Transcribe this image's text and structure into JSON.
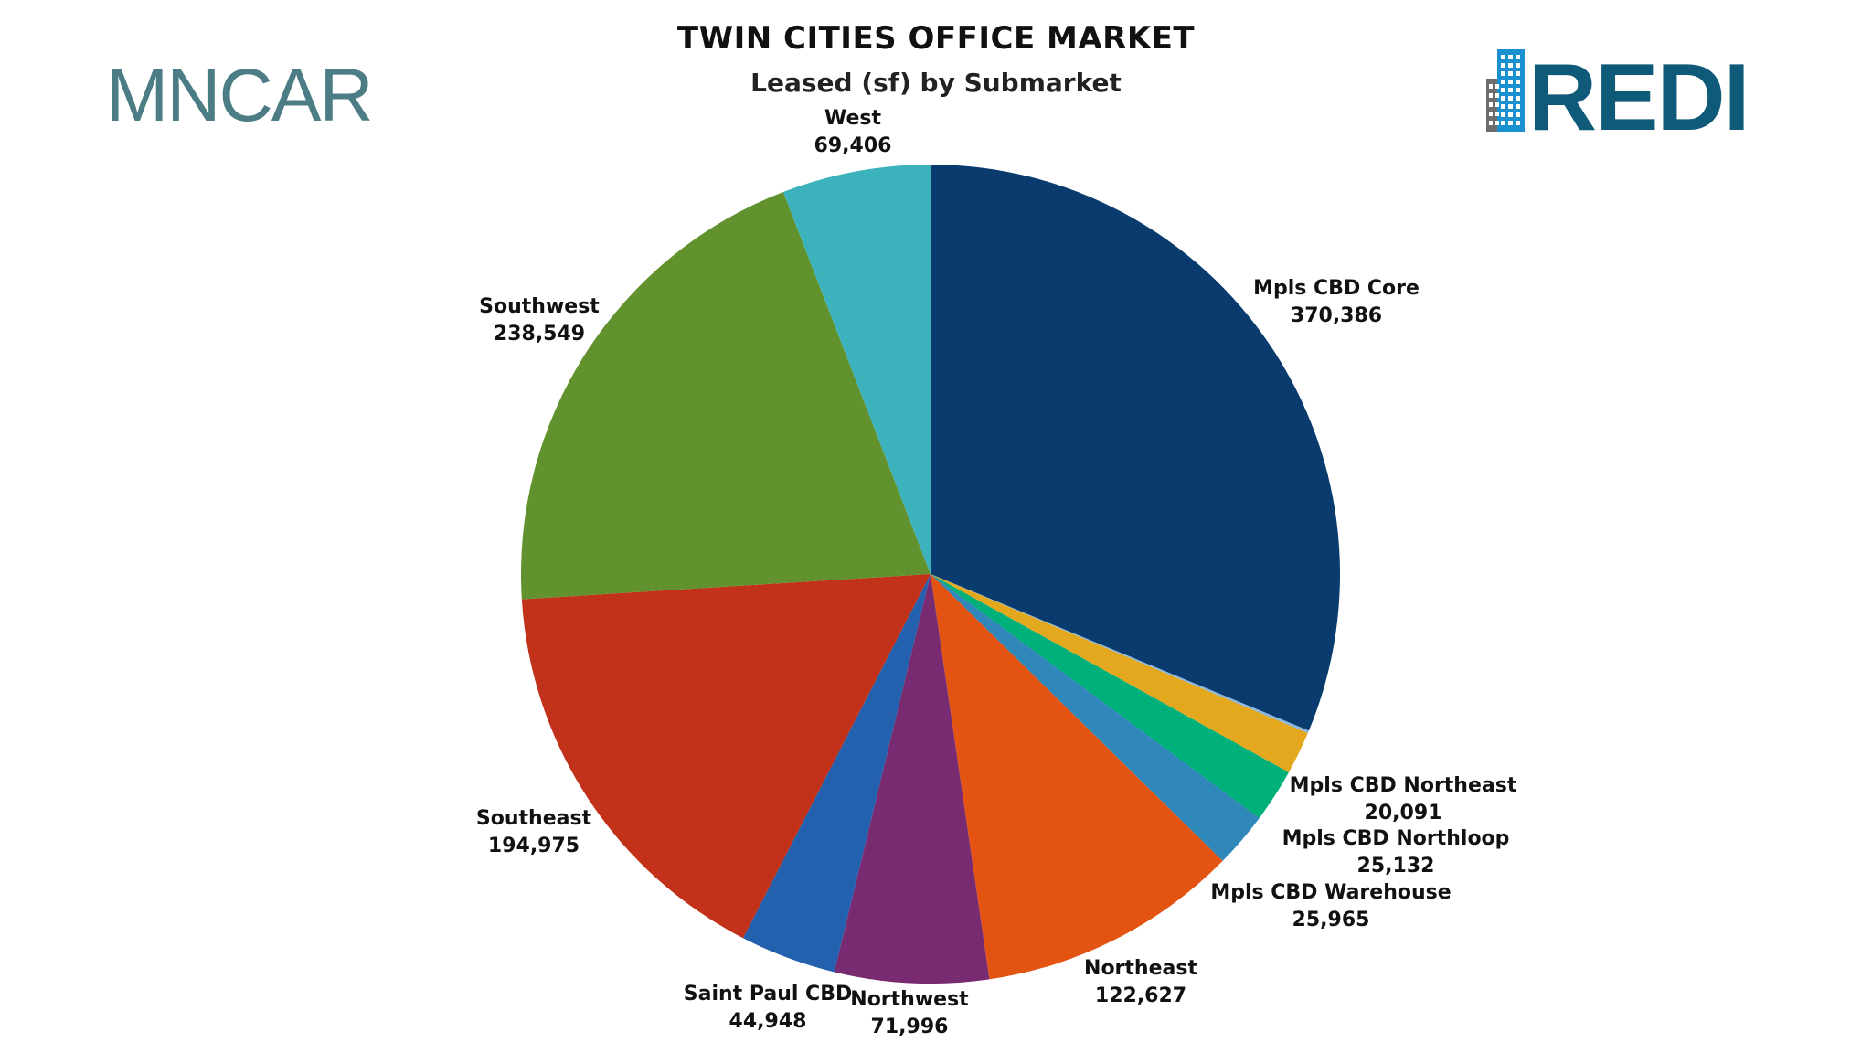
{
  "header": {
    "title": "TWIN CITIES OFFICE MARKET",
    "subtitle": "Leased (sf) by Submarket"
  },
  "logos": {
    "left": "MNCAR",
    "right": "REDI"
  },
  "colors": {
    "mncar_text": "#4c7d85",
    "redi_text": "#0f5a78",
    "redi_building_blue": "#1a90d0",
    "redi_building_gray": "#6d6d6d"
  },
  "chart_data": {
    "type": "pie",
    "title": "TWIN CITIES OFFICE MARKET",
    "subtitle": "Leased (sf) by Submarket",
    "start_angle": "12 o'clock",
    "direction": "clockwise",
    "legend": "none",
    "slices": [
      {
        "label": "Mpls CBD Core",
        "value": 370386,
        "value_label": "370,386",
        "color": "#093b6e"
      },
      {
        "label": "",
        "value": 1200,
        "value_label": "",
        "color": "#8ab8df"
      },
      {
        "label": "Mpls CBD Northeast",
        "value": 20091,
        "value_label": "20,091",
        "color": "#e3a81e"
      },
      {
        "label": "Mpls CBD Northloop",
        "value": 25132,
        "value_label": "25,132",
        "color": "#00b07a"
      },
      {
        "label": "Mpls CBD Warehouse",
        "value": 25965,
        "value_label": "25,965",
        "color": "#2f88b9"
      },
      {
        "label": "Northeast",
        "value": 122627,
        "value_label": "122,627",
        "color": "#e35413"
      },
      {
        "label": "Northwest",
        "value": 71996,
        "value_label": "71,996",
        "color": "#792b72"
      },
      {
        "label": "Saint Paul CBD",
        "value": 44948,
        "value_label": "44,948",
        "color": "#2360ad"
      },
      {
        "label": "Southeast",
        "value": 194975,
        "value_label": "194,975",
        "color": "#c2311a"
      },
      {
        "label": "Southwest",
        "value": 238549,
        "value_label": "238,549",
        "color": "#62922e"
      },
      {
        "label": "West",
        "value": 69406,
        "value_label": "69,406",
        "color": "#3bb2bc"
      }
    ]
  }
}
